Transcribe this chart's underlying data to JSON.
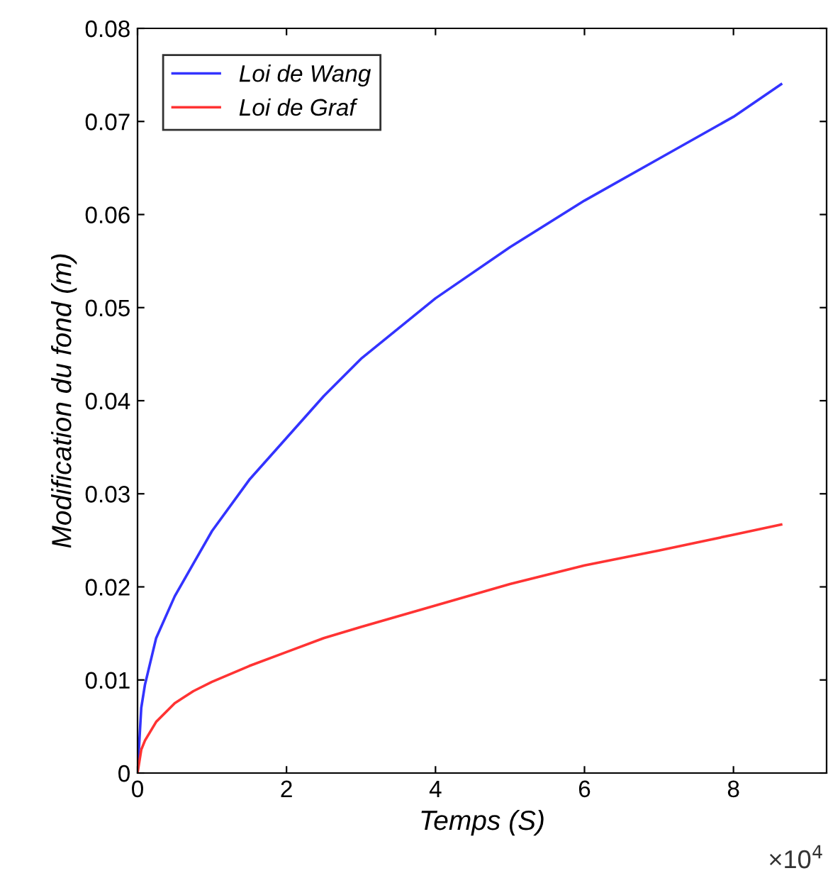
{
  "chart_data": {
    "type": "line",
    "xlabel": "Temps (S)",
    "ylabel": "Modification du fond (m)",
    "xlim": [
      0,
      9.25
    ],
    "ylim": [
      0,
      0.08
    ],
    "xticks": [
      0,
      2,
      4,
      6,
      8
    ],
    "yticks": [
      0,
      0.01,
      0.02,
      0.03,
      0.04,
      0.05,
      0.06,
      0.07,
      0.08
    ],
    "annotations": [
      "×10$^{4}$"
    ],
    "legend": "top left",
    "grid": false,
    "marker": "none",
    "line_style": "solid",
    "series": [
      {
        "name": "Loi de Wang",
        "color": "#3333ff",
        "x": [
          0,
          0.05,
          0.1,
          0.25,
          0.5,
          0.75,
          1,
          1.5,
          2,
          2.5,
          3,
          4,
          5,
          6,
          7,
          8,
          8.64
        ],
        "values": [
          0,
          0.007,
          0.0095,
          0.0145,
          0.019,
          0.0225,
          0.026,
          0.0315,
          0.036,
          0.0405,
          0.0445,
          0.051,
          0.0565,
          0.0615,
          0.066,
          0.0705,
          0.074
        ]
      },
      {
        "name": "Loi de Graf",
        "color": "#ff3333",
        "x": [
          0,
          0.05,
          0.1,
          0.25,
          0.5,
          0.75,
          1,
          1.5,
          2,
          2.5,
          3,
          4,
          5,
          6,
          7,
          8,
          8.64
        ],
        "values": [
          0,
          0.0025,
          0.0035,
          0.0055,
          0.0075,
          0.0088,
          0.0098,
          0.0115,
          0.013,
          0.0145,
          0.0157,
          0.018,
          0.0203,
          0.0223,
          0.0239,
          0.0256,
          0.0267
        ]
      }
    ]
  }
}
